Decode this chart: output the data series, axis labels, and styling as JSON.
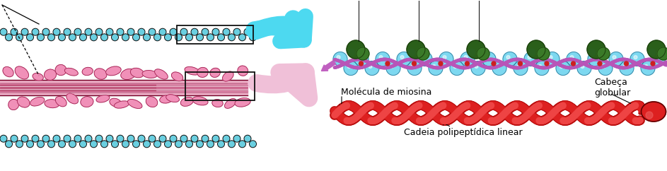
{
  "fig_width": 9.43,
  "fig_height": 2.42,
  "dpi": 100,
  "bg_color": "#ffffff",
  "label_molecula": "Molécula de miosina",
  "label_cabeca": "Cabeça\nglobular",
  "label_cadeia": "Cadeia polipeptídica linear",
  "cyan_arrow_color": "#4dd9f0",
  "pink_arrow_color": "#f0c0d8",
  "actin_cyan": "#7dd8f0",
  "actin_dark": "#111111",
  "myosin_pink": "#f080a8",
  "myosin_line": "#d06080",
  "tropomyosin_color": "#b060b0",
  "troponin_dark": "#2a5a1a",
  "troponin_light": "#3a8a2a",
  "red_dark": "#bb1010",
  "red_mid": "#dd2020",
  "red_light": "#ee4444"
}
